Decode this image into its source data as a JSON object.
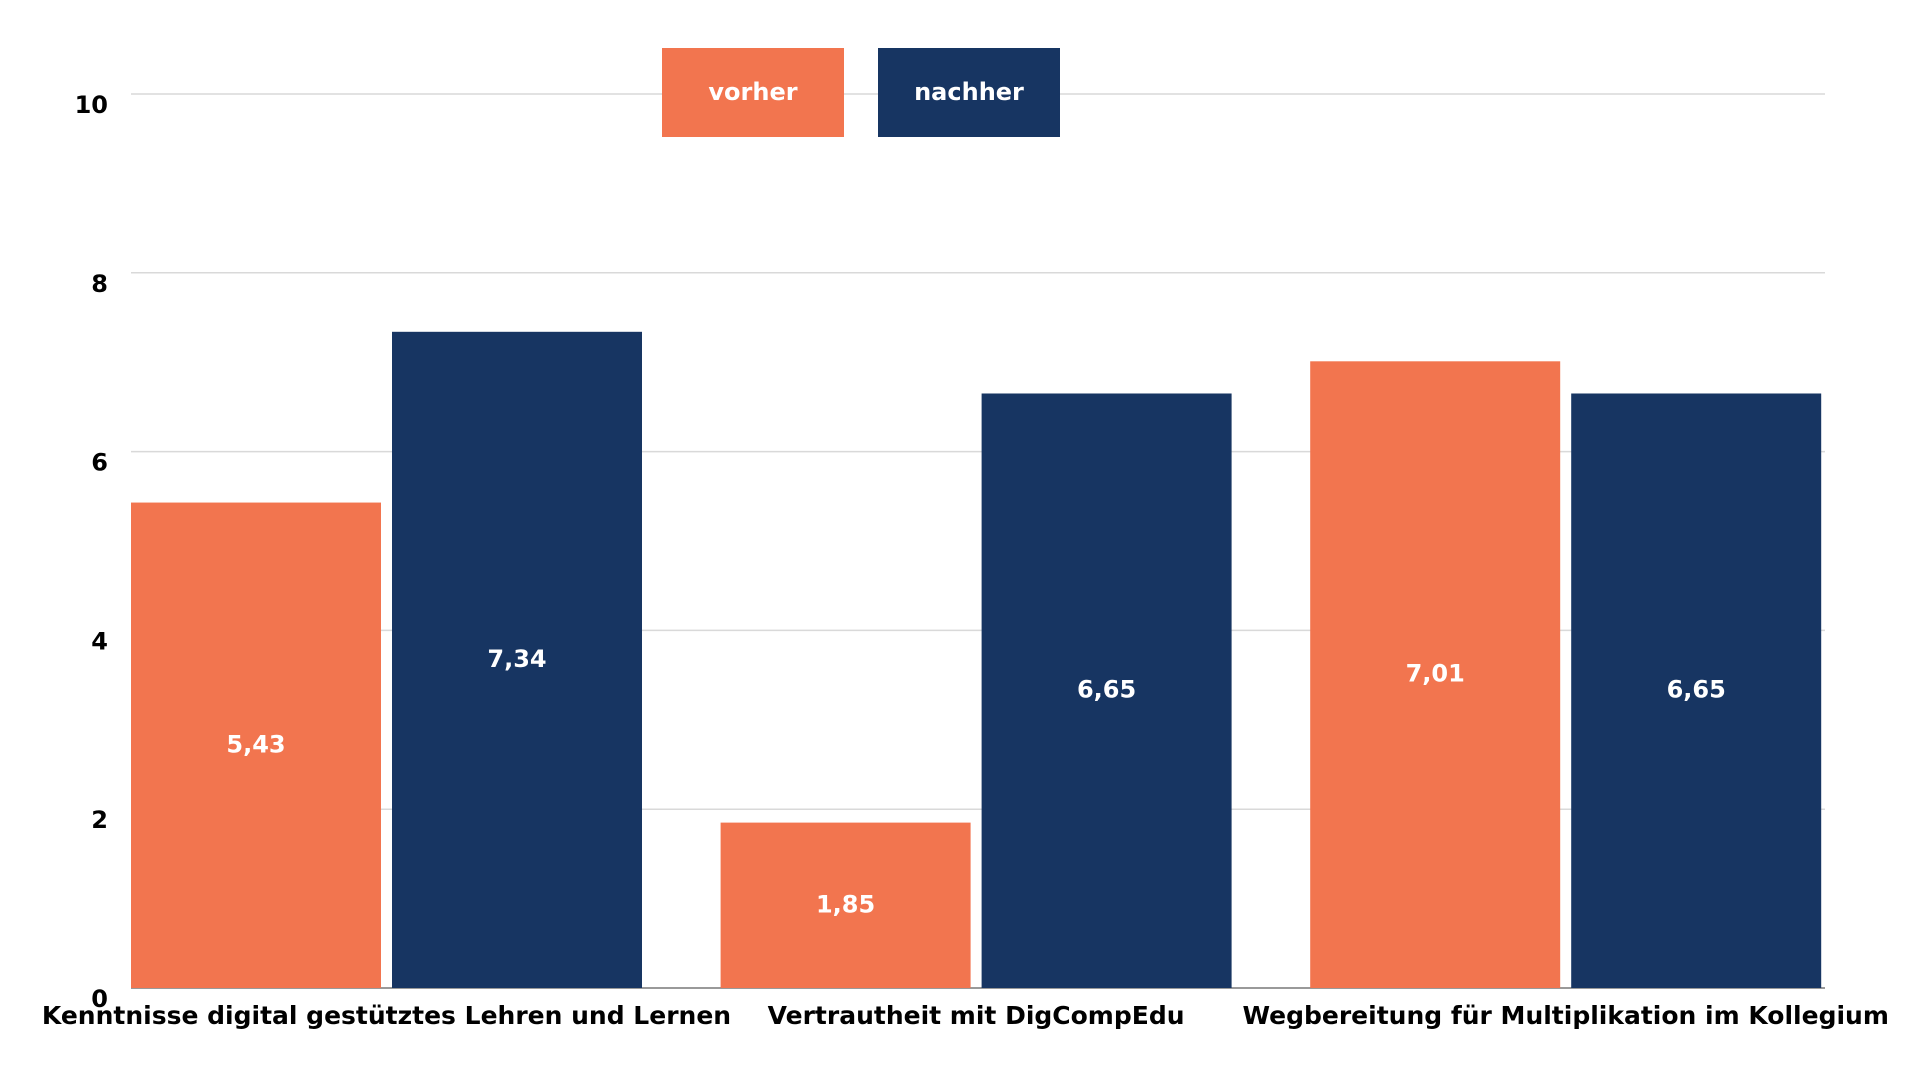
{
  "chart_data": {
    "type": "bar",
    "categories": [
      "Kenntnisse digital gestütztes Lehren und Lernen",
      "Vertrautheit mit DigCompEdu",
      "Wegbereitung für Multiplikation im Kollegium"
    ],
    "series": [
      {
        "name": "vorher",
        "color": "#f2754f",
        "values": [
          5.43,
          1.85,
          7.01
        ],
        "value_labels": [
          "5,43",
          "1,85",
          "7,01"
        ]
      },
      {
        "name": "nachher",
        "color": "#173562",
        "values": [
          7.34,
          6.65,
          6.65
        ],
        "value_labels": [
          "7,34",
          "6,65",
          "6,65"
        ]
      }
    ],
    "ylim": [
      0,
      10
    ],
    "yticks": [
      0,
      2,
      4,
      6,
      8,
      10
    ],
    "grid": true,
    "legend": "top"
  }
}
